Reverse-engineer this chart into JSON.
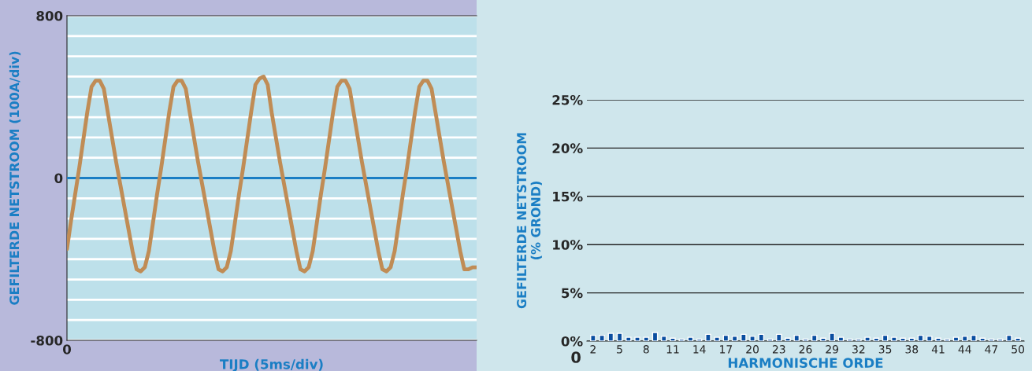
{
  "chart_data": [
    {
      "type": "line",
      "xlabel": "TIJD (5ms/div)",
      "ylabel": "GEFILTERDE NETSTROOM (100A/div)",
      "categories": [
        "0",
        null,
        null,
        null,
        null,
        null,
        null,
        null,
        null,
        null,
        null,
        null,
        null,
        null,
        null,
        null,
        null,
        null,
        null,
        null,
        null,
        null,
        null,
        null,
        null,
        null,
        null,
        null,
        null,
        null,
        null,
        null,
        null,
        null,
        null,
        null,
        null,
        null,
        null,
        null,
        null,
        null,
        null,
        null,
        null,
        null,
        null,
        null,
        null,
        null,
        null,
        null,
        null,
        null,
        null,
        null,
        null,
        null,
        null,
        null,
        null,
        null,
        null,
        null,
        null,
        null,
        null,
        null,
        null,
        null,
        null,
        null,
        null,
        null,
        null,
        null,
        null,
        null,
        null,
        null,
        null,
        null,
        null,
        null,
        null,
        null,
        null,
        null,
        null,
        null,
        null,
        null,
        null,
        null,
        null,
        null,
        null,
        null,
        null,
        null,
        null
      ],
      "ylim": [
        -800,
        800
      ],
      "yticks": [
        {
          "value": -800,
          "label": "-800"
        },
        {
          "value": -700,
          "label": null
        },
        {
          "value": -600,
          "label": null
        },
        {
          "value": -500,
          "label": null
        },
        {
          "value": -400,
          "label": null
        },
        {
          "value": -300,
          "label": null
        },
        {
          "value": -200,
          "label": null
        },
        {
          "value": -100,
          "label": null
        },
        {
          "value": 0,
          "label": "0"
        },
        {
          "value": 100,
          "label": null
        },
        {
          "value": 200,
          "label": null
        },
        {
          "value": 300,
          "label": null
        },
        {
          "value": 400,
          "label": null
        },
        {
          "value": 500,
          "label": null
        },
        {
          "value": 600,
          "label": null
        },
        {
          "value": 700,
          "label": null
        },
        {
          "value": 800,
          "label": "800"
        }
      ],
      "grid": true,
      "ref_lines": [
        {
          "axis": "y",
          "value": 0,
          "color": "#1a7ec4"
        }
      ],
      "series": [
        {
          "color": "#c08c55",
          "values": [
            -350,
            -210,
            -80,
            50,
            190,
            330,
            450,
            480,
            480,
            440,
            320,
            200,
            80,
            -30,
            -140,
            -250,
            -360,
            -450,
            -460,
            -440,
            -360,
            -220,
            -80,
            50,
            190,
            330,
            450,
            480,
            480,
            440,
            320,
            200,
            80,
            -30,
            -140,
            -250,
            -360,
            -450,
            -460,
            -440,
            -360,
            -220,
            -80,
            50,
            190,
            330,
            460,
            490,
            500,
            460,
            320,
            200,
            80,
            -30,
            -140,
            -250,
            -360,
            -450,
            -460,
            -440,
            -360,
            -220,
            -80,
            50,
            190,
            330,
            450,
            480,
            480,
            440,
            320,
            200,
            80,
            -30,
            -140,
            -250,
            -360,
            -450,
            -460,
            -440,
            -360,
            -220,
            -80,
            50,
            190,
            330,
            450,
            480,
            480,
            440,
            320,
            200,
            80,
            -30,
            -140,
            -250,
            -360,
            -450,
            -450,
            -440,
            -440
          ]
        }
      ]
    },
    {
      "type": "bar",
      "xlabel": "HARMONISCHE ORDE",
      "ylabel": "GEFILTERDE NETSTROOM\n(% GROND)",
      "categories": [
        "2",
        null,
        null,
        "5",
        null,
        null,
        "8",
        null,
        null,
        "11",
        null,
        null,
        "14",
        null,
        null,
        "17",
        null,
        null,
        "20",
        null,
        null,
        "23",
        null,
        null,
        "26",
        null,
        null,
        "29",
        null,
        null,
        "32",
        null,
        null,
        "35",
        null,
        null,
        "38",
        null,
        null,
        "41",
        null,
        null,
        "44",
        null,
        null,
        "47",
        null,
        null,
        "50"
      ],
      "ylim": [
        0,
        25
      ],
      "yticks": [
        {
          "value": 0,
          "label": "0%"
        },
        {
          "value": 5,
          "label": "5%"
        },
        {
          "value": 10,
          "label": "10%"
        },
        {
          "value": 15,
          "label": "15%"
        },
        {
          "value": 20,
          "label": "20%"
        },
        {
          "value": 25,
          "label": "25%"
        }
      ],
      "grid": "y",
      "annotations": [
        "0"
      ],
      "series": [
        {
          "color": "#0a4ea0",
          "values": [
            0.6,
            0.6,
            0.8,
            0.8,
            0.4,
            0.4,
            0.4,
            0.9,
            0.5,
            0.3,
            0.2,
            0.4,
            0.2,
            0.7,
            0.4,
            0.6,
            0.5,
            0.7,
            0.5,
            0.7,
            0.2,
            0.7,
            0.3,
            0.6,
            0.2,
            0.6,
            0.3,
            0.8,
            0.4,
            0.2,
            0.2,
            0.4,
            0.3,
            0.6,
            0.4,
            0.3,
            0.3,
            0.6,
            0.5,
            0.3,
            0.2,
            0.4,
            0.5,
            0.6,
            0.3,
            0.2,
            0.2,
            0.6,
            0.3
          ]
        }
      ]
    }
  ]
}
